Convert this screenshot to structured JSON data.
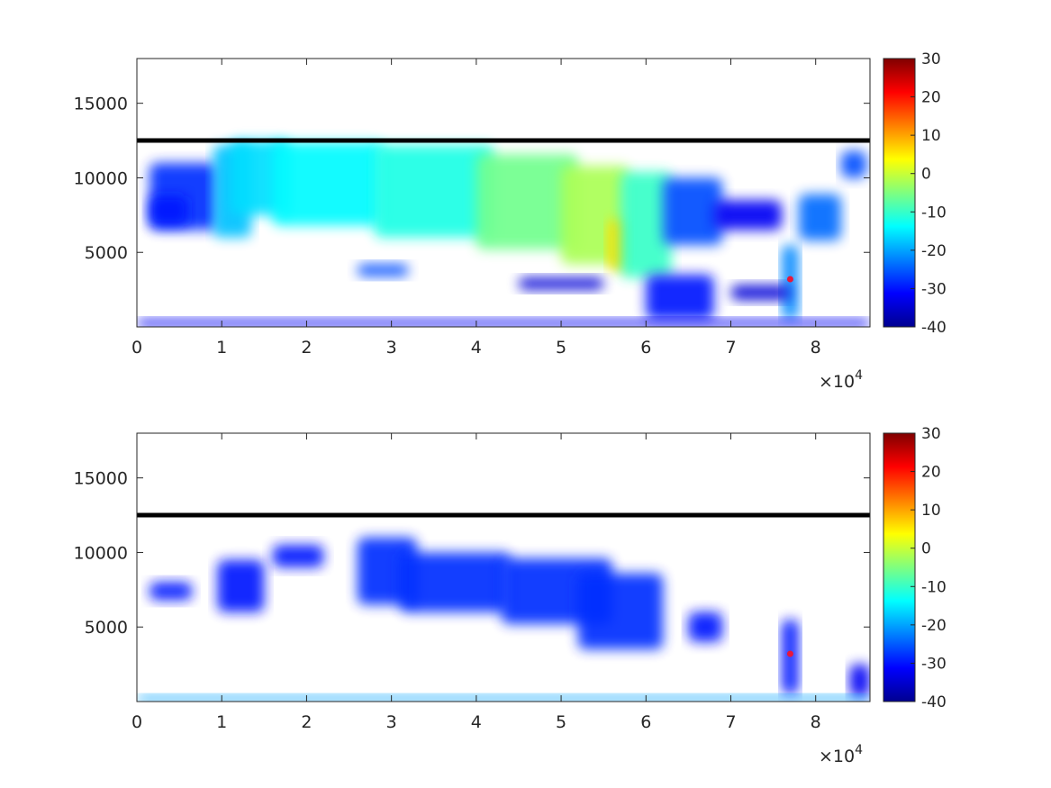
{
  "chart_data": [
    {
      "type": "heatmap",
      "xlim": [
        0,
        86400
      ],
      "ylim": [
        0,
        18000
      ],
      "x_ticks": [
        0,
        10000,
        20000,
        30000,
        40000,
        50000,
        60000,
        70000,
        80000
      ],
      "x_tick_labels": [
        "0",
        "1",
        "2",
        "3",
        "4",
        "5",
        "6",
        "7",
        "8"
      ],
      "x_exponent_label": "×10",
      "x_exponent_power": "4",
      "y_ticks": [
        5000,
        10000,
        15000
      ],
      "y_tick_labels": [
        "5000",
        "10000",
        "15000"
      ],
      "colorbar": {
        "colormap": "jet",
        "min": -40,
        "max": 30,
        "ticks": [
          "30",
          "20",
          "10",
          "0",
          "-10",
          "-20",
          "-30",
          "-40"
        ]
      },
      "reference_line_y": 12500,
      "marker": {
        "x": 77000,
        "y": 3200,
        "color": "#e8173a"
      },
      "blobs": [
        {
          "x0": 1500,
          "x1": 9500,
          "yb": 6500,
          "yt": 11000,
          "v": -28
        },
        {
          "x0": 1500,
          "x1": 6000,
          "yb": 6800,
          "yt": 8800,
          "v": -30
        },
        {
          "x0": 9000,
          "x1": 13500,
          "yb": 6000,
          "yt": 12200,
          "v": -18
        },
        {
          "x0": 11000,
          "x1": 18000,
          "yb": 7500,
          "yt": 12500,
          "v": -16
        },
        {
          "x0": 16000,
          "x1": 29000,
          "yb": 6800,
          "yt": 12400,
          "v": -14
        },
        {
          "x0": 28000,
          "x1": 42000,
          "yb": 6000,
          "yt": 12200,
          "v": -12
        },
        {
          "x0": 40000,
          "x1": 52000,
          "yb": 5200,
          "yt": 11600,
          "v": -6
        },
        {
          "x0": 50000,
          "x1": 58000,
          "yb": 4200,
          "yt": 10800,
          "v": -2
        },
        {
          "x0": 55500,
          "x1": 58000,
          "yb": 3800,
          "yt": 7200,
          "v": 6
        },
        {
          "x0": 57000,
          "x1": 63000,
          "yb": 3300,
          "yt": 10400,
          "v": -10
        },
        {
          "x0": 62000,
          "x1": 69000,
          "yb": 5500,
          "yt": 10000,
          "v": -26
        },
        {
          "x0": 68000,
          "x1": 76000,
          "yb": 6500,
          "yt": 8500,
          "v": -32
        },
        {
          "x0": 78000,
          "x1": 83000,
          "yb": 5800,
          "yt": 8900,
          "v": -24
        },
        {
          "x0": 83000,
          "x1": 86000,
          "yb": 10000,
          "yt": 11800,
          "v": -26
        },
        {
          "x0": 76000,
          "x1": 78000,
          "yb": 500,
          "yt": 5500,
          "v": -22
        },
        {
          "x0": 70000,
          "x1": 77000,
          "yb": 1800,
          "yt": 2800,
          "v": -34
        },
        {
          "x0": 26000,
          "x1": 32000,
          "yb": 3400,
          "yt": 4200,
          "v": -26
        },
        {
          "x0": 45000,
          "x1": 55000,
          "yb": 2500,
          "yt": 3300,
          "v": -34
        },
        {
          "x0": 60000,
          "x1": 68000,
          "yb": 500,
          "yt": 3500,
          "v": -30
        },
        {
          "x0": 0,
          "x1": 86400,
          "yb": 0,
          "yt": 500,
          "v": -32
        }
      ]
    },
    {
      "type": "heatmap",
      "xlim": [
        0,
        86400
      ],
      "ylim": [
        0,
        18000
      ],
      "x_ticks": [
        0,
        10000,
        20000,
        30000,
        40000,
        50000,
        60000,
        70000,
        80000
      ],
      "x_tick_labels": [
        "0",
        "1",
        "2",
        "3",
        "4",
        "5",
        "6",
        "7",
        "8"
      ],
      "x_exponent_label": "×10",
      "x_exponent_power": "4",
      "y_ticks": [
        5000,
        10000,
        15000
      ],
      "y_tick_labels": [
        "5000",
        "10000",
        "15000"
      ],
      "colorbar": {
        "colormap": "jet",
        "min": -40,
        "max": 30,
        "ticks": [
          "30",
          "20",
          "10",
          "0",
          "-10",
          "-20",
          "-30",
          "-40"
        ]
      },
      "reference_line_y": 12500,
      "marker": {
        "x": 77000,
        "y": 3200,
        "color": "#e8173a"
      },
      "blobs": [
        {
          "x0": 1500,
          "x1": 6500,
          "yb": 6800,
          "yt": 8000,
          "v": -30
        },
        {
          "x0": 9500,
          "x1": 15000,
          "yb": 6000,
          "yt": 9500,
          "v": -30
        },
        {
          "x0": 16000,
          "x1": 22000,
          "yb": 9000,
          "yt": 10500,
          "v": -30
        },
        {
          "x0": 26000,
          "x1": 33000,
          "yb": 6500,
          "yt": 11000,
          "v": -28
        },
        {
          "x0": 31000,
          "x1": 44000,
          "yb": 6000,
          "yt": 10000,
          "v": -28
        },
        {
          "x0": 43000,
          "x1": 56000,
          "yb": 5200,
          "yt": 9600,
          "v": -28
        },
        {
          "x0": 52000,
          "x1": 62000,
          "yb": 3500,
          "yt": 8600,
          "v": -28
        },
        {
          "x0": 65000,
          "x1": 69000,
          "yb": 4000,
          "yt": 6000,
          "v": -30
        },
        {
          "x0": 76000,
          "x1": 78000,
          "yb": 500,
          "yt": 5500,
          "v": -30
        },
        {
          "x0": 84000,
          "x1": 86400,
          "yb": 300,
          "yt": 2500,
          "v": -32
        },
        {
          "x0": 0,
          "x1": 86400,
          "yb": 0,
          "yt": 400,
          "v": -20
        }
      ]
    }
  ]
}
